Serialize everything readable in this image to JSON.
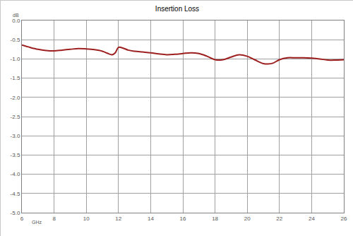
{
  "chart_data": {
    "type": "line",
    "title": "Insertion Loss",
    "x_label": "GHz",
    "y_label": "dB",
    "x": [
      6,
      6.5,
      7,
      7.5,
      8,
      8.5,
      9,
      9.5,
      10,
      10.5,
      11,
      11.3,
      11.6,
      11.8,
      12,
      12.3,
      12.6,
      13,
      13.5,
      14,
      14.5,
      15,
      15.5,
      16,
      16.5,
      17,
      17.5,
      18,
      18.5,
      19,
      19.5,
      20,
      20.5,
      21,
      21.3,
      21.6,
      22,
      22.5,
      23,
      23.5,
      24,
      24.5,
      25,
      25.5,
      26
    ],
    "series": [
      {
        "name": "Insertion Loss",
        "color": "#9e1f1f",
        "values": [
          -0.64,
          -0.7,
          -0.75,
          -0.78,
          -0.79,
          -0.77,
          -0.75,
          -0.73,
          -0.74,
          -0.76,
          -0.8,
          -0.85,
          -0.89,
          -0.84,
          -0.7,
          -0.72,
          -0.77,
          -0.8,
          -0.82,
          -0.84,
          -0.87,
          -0.89,
          -0.88,
          -0.86,
          -0.84,
          -0.86,
          -0.93,
          -1.02,
          -1.02,
          -0.95,
          -0.89,
          -0.93,
          -1.03,
          -1.12,
          -1.13,
          -1.11,
          -1.02,
          -0.97,
          -0.97,
          -0.97,
          -0.98,
          -1.0,
          -1.03,
          -1.03,
          -1.02
        ]
      }
    ],
    "xlim": [
      6,
      26
    ],
    "xticks": [
      6,
      8,
      10,
      12,
      14,
      16,
      18,
      20,
      22,
      24,
      26
    ],
    "ylim": [
      -5,
      0
    ],
    "yticks": [
      {
        "value": 0,
        "label": "0.0"
      },
      -0.5,
      {
        "value": -1,
        "label": "-1.0"
      },
      -1.5,
      {
        "value": -2,
        "label": "-2.0"
      },
      -2.5,
      {
        "value": -3,
        "label": "-3.0"
      },
      -3.5,
      {
        "value": -4,
        "label": "-4.0"
      },
      -4.5,
      {
        "value": -5,
        "label": "-5.0"
      }
    ],
    "grid": true
  }
}
